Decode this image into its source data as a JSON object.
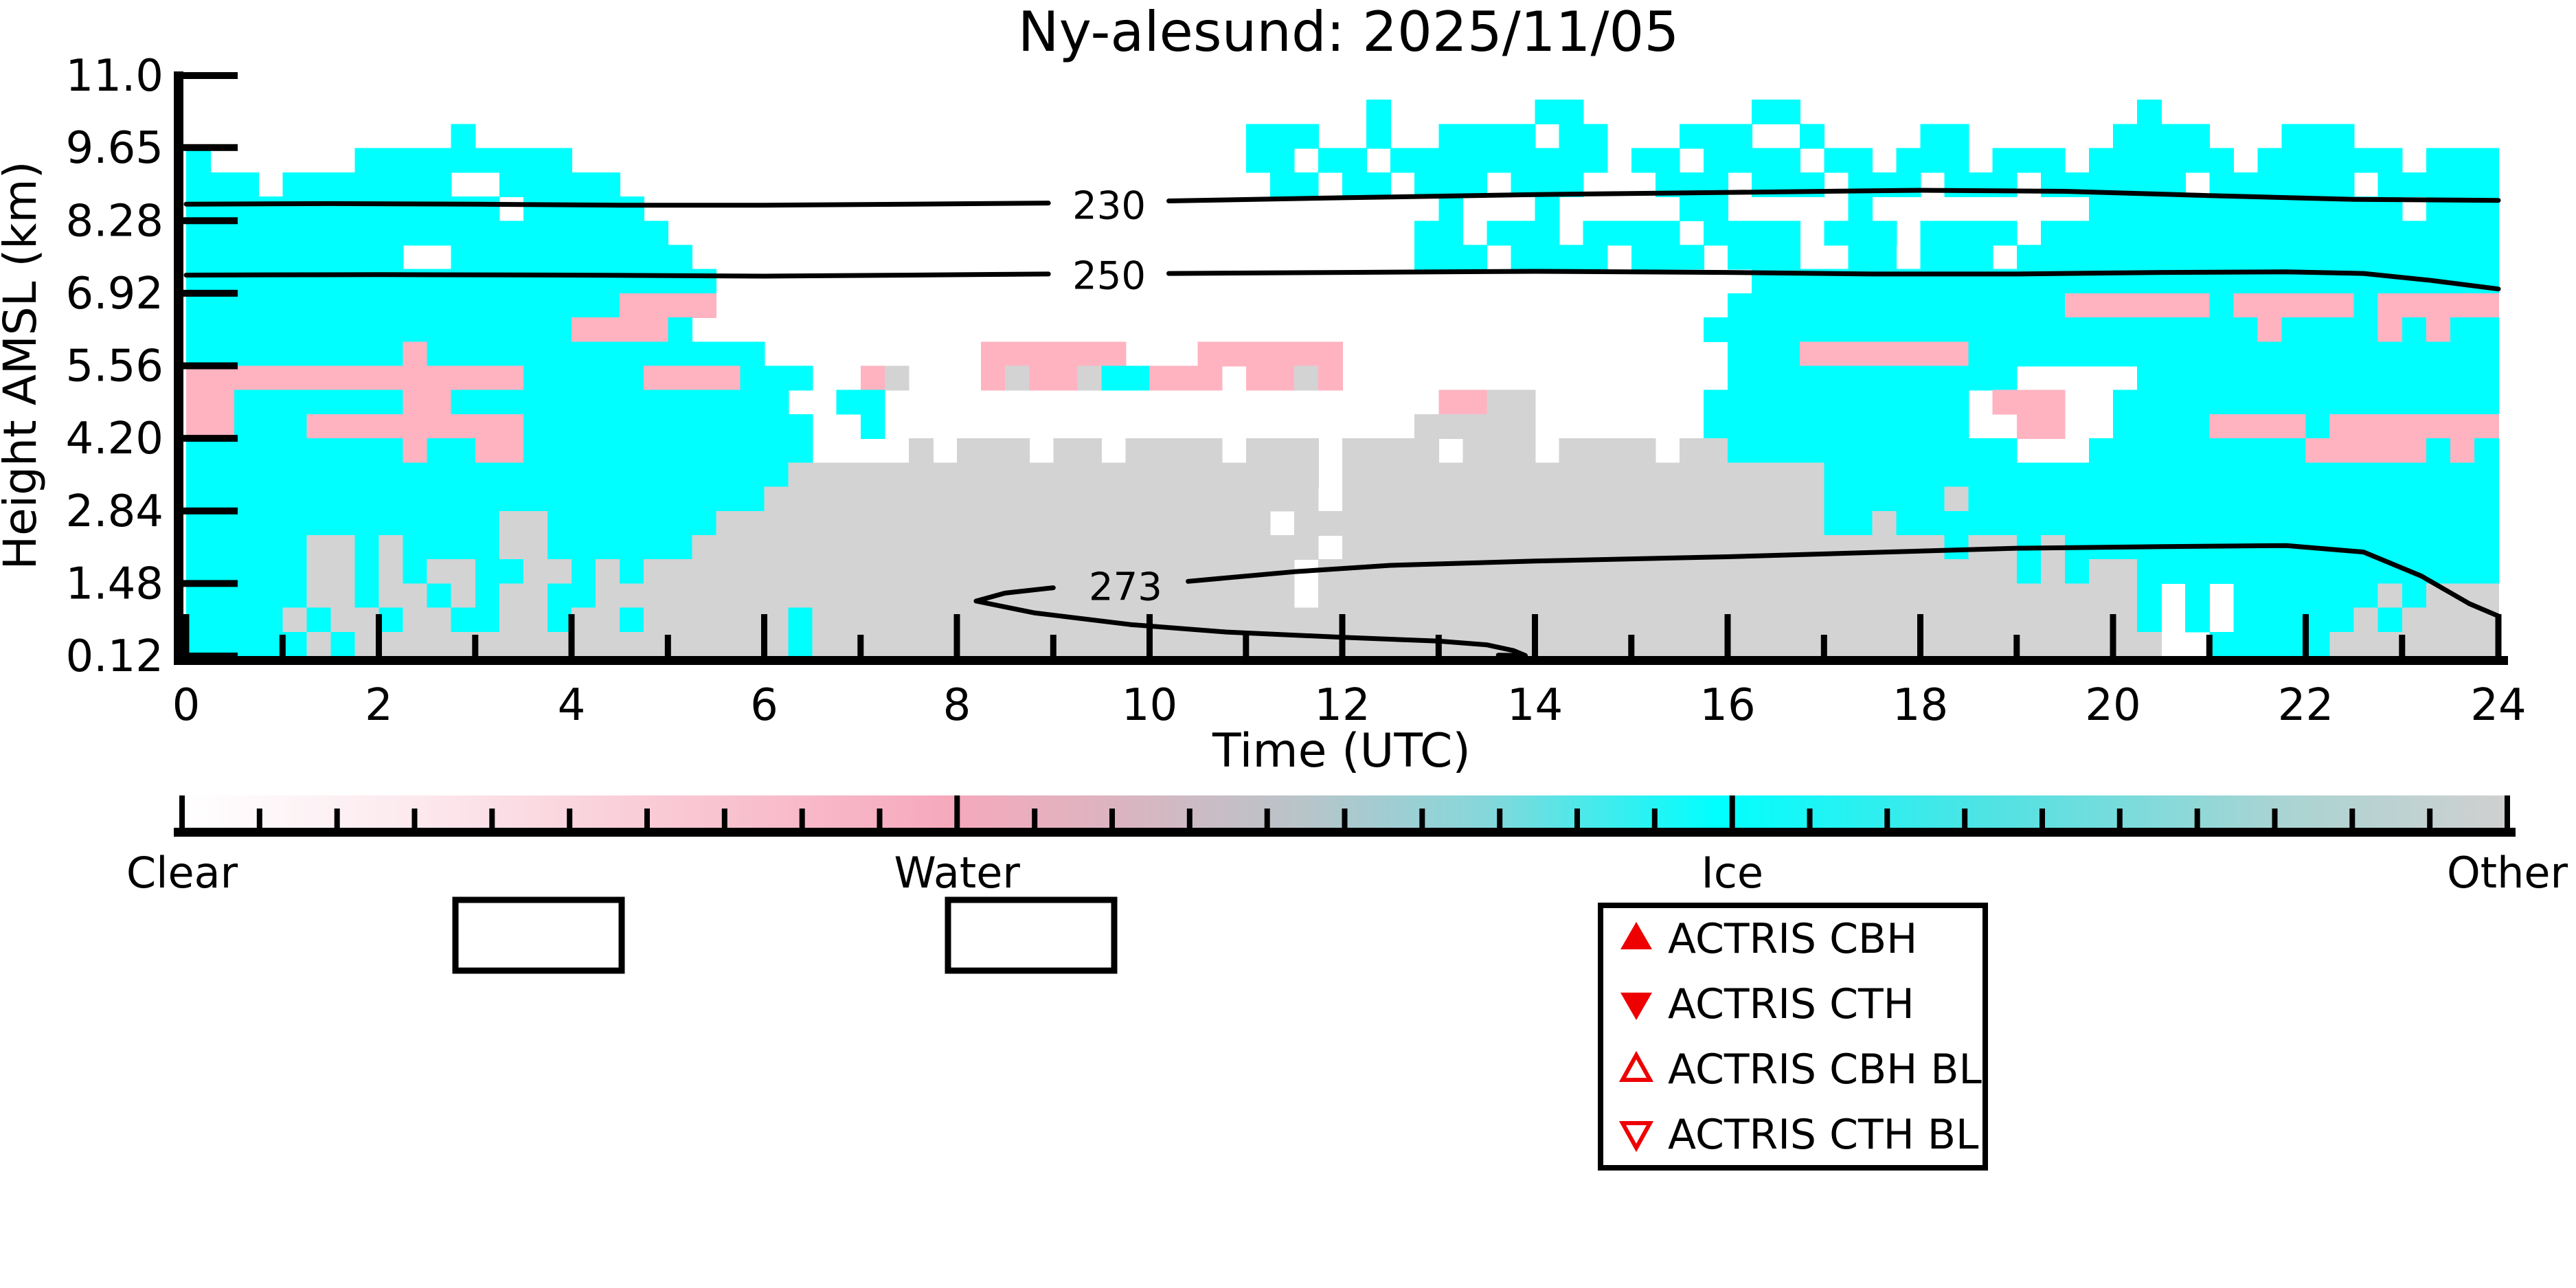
{
  "title": "Ny-alesund: 2025/11/05",
  "axes": {
    "ylabel": "Height AMSL (km)",
    "xlabel": "Time (UTC)",
    "yticks": [
      "11.0",
      "9.65",
      "8.28",
      "6.92",
      "5.56",
      "4.20",
      "2.84",
      "1.48",
      "0.12"
    ],
    "ytick_values": [
      11.0,
      9.65,
      8.28,
      6.92,
      5.56,
      4.2,
      2.84,
      1.48,
      0.12
    ],
    "xticks": [
      "0",
      "2",
      "4",
      "6",
      "8",
      "10",
      "12",
      "14",
      "16",
      "18",
      "20",
      "22",
      "24"
    ],
    "xtick_values": [
      0,
      2,
      4,
      6,
      8,
      10,
      12,
      14,
      16,
      18,
      20,
      22,
      24
    ],
    "x_minor_every_hours": 1,
    "x_range_hours": [
      0,
      24
    ],
    "y_range_km": [
      0.12,
      11.0
    ]
  },
  "colorbar": {
    "labels": [
      {
        "text": "Clear",
        "frac": 0
      },
      {
        "text": "Water",
        "frac": 0.3333
      },
      {
        "text": "Ice",
        "frac": 0.6667
      },
      {
        "text": "Other",
        "frac": 1
      }
    ],
    "minor_tick_divisions": 30,
    "gradient_stops": [
      [
        "0%",
        "#ffffff"
      ],
      [
        "10%",
        "#fce9ee"
      ],
      [
        "22%",
        "#f9c6d2"
      ],
      [
        "33%",
        "#f6a9bc"
      ],
      [
        "40%",
        "#dcb4c0"
      ],
      [
        "48%",
        "#b9c4c9"
      ],
      [
        "56%",
        "#86d7da"
      ],
      [
        "66%",
        "#00ffff"
      ],
      [
        "78%",
        "#52e2e3"
      ],
      [
        "90%",
        "#a8d4d3"
      ],
      [
        "100%",
        "#d0d0d0"
      ]
    ]
  },
  "legend": {
    "marker_color": "#ee0000",
    "items": [
      {
        "marker": "triangle-up-filled",
        "label": "ACTRIS CBH"
      },
      {
        "marker": "triangle-down-filled",
        "label": "ACTRIS CTH"
      },
      {
        "marker": "triangle-up-open",
        "label": "ACTRIS CBH BL"
      },
      {
        "marker": "triangle-down-open",
        "label": "ACTRIS CTH BL"
      }
    ]
  },
  "empty_marker_boxes": 2,
  "chart_data": {
    "type": "heatmap",
    "title": "Ny-alesund: 2025/11/05",
    "xlabel": "Time (UTC)",
    "ylabel": "Height AMSL (km)",
    "xlim_hours": [
      0,
      24
    ],
    "ylim_km": [
      0.12,
      11.0
    ],
    "legend_position": "below-right",
    "grid_lines": "off",
    "classes": {
      "C": {
        "name": "Clear",
        "color": "#ffffff"
      },
      "W": {
        "name": "Water",
        "color": "#ffb3c1"
      },
      "I": {
        "name": "Ice",
        "color": "#00ffff"
      },
      "O": {
        "name": "Other",
        "color": "#d3d3d3"
      }
    },
    "grid": {
      "time_steps": 96,
      "dt_hours": 0.25,
      "rows_top_to_bottom": 24,
      "row_height_km": 0.4533,
      "rows": [
        "CCCCCCCCCCCCCCCCCCCCCCCCCCCCCCCCCCCCCCCCCCCCCCCCCCCCCCCCCCCCCCCCCCCCCCCCCCCCCCCCCCCCCCCCCCCCCC",
        "CCCCCCCCCCCCCCCCCCCCCCCCCCCCCCCCCCCCCCCCCCCCCCCCCICCCCCCIICCCCCCCIICCCCCCCCCCCCCCICCCCCCCCCCCCCC",
        "CCCCCCCCCCCICCCCCCCCCCCCCCCCCCCCCCCCCCCCCCCCIIICCICCIIIICIICCCIIICCICCCCIICCCCCCIIIICCCIIICCCCCC",
        "ICCCCCCIIIIIIIIICCCCCCCCCCCCCCCCCCCCCCCCCCCCIICIICIIIIIIIIICIICIIIICIICIIICIIICIIIIIICIIIIIICIII",
        "IIICIIIIIIICCIIIIICCCCCCCCCCCCCCCCCCCCCCCCCCCIICIICIIICIIICCCIIICIIICIIICIIICIIIIIICIIIIIICIIIII",
        "IIIIIIIIIIIIICIIIIICCCCCCCCCCCCCCCCCCCCCCCCCCCCCCCCCICCCICCCCCIICCCCCICCCCCCCCCIIIIIIIIIIIIICII",
        "IIIIIIIIIIIIIIIIIIIICCCCCCCCCCCCCCCCCCCCCCCCCCCCCCCIICIIICIIIICIIIICIIICIIIICIIIIIIIIIIIIIIIIIII",
        "IIIIIIIIICCIIIIIIIIIICCCCCCCCCCCCCCCCCCCCCCCCCCCCCCIIICIIIICIIICIIICCIICIIICIIIIIIIIIIIIIIIIIIII",
        "IIIIIIIIIIIIIIIIIIIIIICCCCCCCCCCCCCCCCCCCCCCCCCCCCCCCCCCCCCCCCCCCIIIIIIIIIIIIIIIIIIIIIIIIIIIII",
        "IIIIIIIIIIIIIIIIIIWWWWCCCCCCCCCCCCCCCCCCCCCCCCCCCCCCCCCCCCCCCCCCIIIIIIIIIIIIIIWWWWWWIWWWWWIWWW",
        "IIIIIIIIIIIIIIIIWWWWICCCCCCCCCCCCCCCCCCCCCCCCCCCCCCCCCCCCCCCCCCIIIIIIIIIIIIIIIIIIIIIIIWIIIIWIWI",
        "IIIIIIIIIWIIIIIIIIIIIIIICCCCCCCCCWWWWWWCCCWWWWWWCCCCCCCCCCCCCCCCIIIWWWWWWWIIIIIIIIIIIIIIIIIIIIII",
        "WWWWWWWWWWWWWWIIIIIWWWWIIICCWOCCCWOWWOIIWWWCWWOWCCCCCCCCCCCCCCCCIIIIIIIIIIIICCCCCIIIIIIIIIIIIIII",
        "WWIIIIIIIWWIIIIIIIIIIIIIICCIICCCCCCCCCCCCCCCCCCCCCCCWWOOCCCCCCCIIIIIIIIIIICWWWCCIIIIIIIIIIIIIII",
        "WWIIIWWWWWWWWWIIIIIIIIIIIICCICCCCCCCCCCCCCCCCCCCCCCOOOOOCCCCCCCIIIIIIIIIIICCWWCCIIIIWWWWIWWWWWW",
        "IIIIIIIIIWIIWWIIIIIIIIIIIICCCCOCOOOCOOCOOOOCOOOCOOOOCOOOCOOOOCOOIIIIIIIIIIIICCCIIIIIIIIIWWWWWIWI",
        "IIIIIIIIIIIIIIIIIIIIIIIIIOOOOOOOOOOOOOOOOOOOOOOCOOOOOOOOOOOOOOOOOOOOIIIIIIIIIIIIIIIIIIIIIIIIIIII",
        "IIIIIIIIIIIIIIIIIIIIIIIIOOOOOOOOOOOOOOOOOOOOOOOCOOOOOOOOOOOOOOOOOOOOIIIIIOIIIIIIIIIIIIIIIIIIIIII",
        "IIIIIIIIIIIIIOOIIIIIIIOOOOOOOOOOOOOOOOOOOOOOOCOOOOOOOOOOOOOOOOOOOOOOIIOIIIIIIIIIIIIIIIIIIIIIII",
        "IIIIIOOIOIIIIOOIIIIIIOOOOOOOOOOOOOOOOOOOOOOOOOOCOOOOOOOOOOOOOOOOOOOOOOOOOIOOIOIIIIIIIIIIIIIIIIII",
        "IIIIIOOIOIOOIIOOIOIOOOOOOOOOOOOOOOOOOOOOOOOOOOCOOOOOOOOOOOOOOOOOOOOOOOOOOOOOIOIOOIIIIIIIIIIIII",
        "IIIIIOOIOOIOIOOIIOOOOOOOOOOOOOOOOOOOOOOOOOOOOOCOOOOOOOOOOOOOOOOOOOOOOOOOOOOOOOOOOICICIIIIIIOIO",
        "IIIIOIOOIOOIIOOIOOIOOOOOOIOOOOOOOOOOOOOOOOOOOOOOOOOOOOOOOOOOOOOOOOOOOOOOOOOOOOOOOICICIIIIIOIOO",
        "IIIIIOIOOOOOOOOOOOOOOOOOOIOOOOOOOOOOOOOOOOOOOOOOOOOOOOOOOOOOOOOOOOOOOOOOOOOOOOOOOOCCIIIIIOOOOO"
      ]
    },
    "contours": [
      {
        "label": "230",
        "label_pos": {
          "h": 9.58,
          "km": 8.57
        },
        "segments": [
          [
            [
              0,
              8.59
            ],
            [
              1.5,
              8.6
            ],
            [
              3,
              8.59
            ],
            [
              4.5,
              8.57
            ],
            [
              6,
              8.57
            ],
            [
              7.5,
              8.59
            ],
            [
              8.95,
              8.61
            ]
          ],
          [
            [
              10.2,
              8.65
            ],
            [
              12,
              8.71
            ],
            [
              14,
              8.77
            ],
            [
              16,
              8.81
            ],
            [
              18,
              8.85
            ],
            [
              19.5,
              8.83
            ],
            [
              21,
              8.75
            ],
            [
              22.5,
              8.68
            ],
            [
              24,
              8.66
            ]
          ]
        ]
      },
      {
        "label": "250",
        "label_pos": {
          "h": 9.58,
          "km": 7.26
        },
        "segments": [
          [
            [
              0,
              7.26
            ],
            [
              2,
              7.27
            ],
            [
              4,
              7.26
            ],
            [
              6,
              7.24
            ],
            [
              7.5,
              7.26
            ],
            [
              8.95,
              7.28
            ]
          ],
          [
            [
              10.2,
              7.29
            ],
            [
              12,
              7.31
            ],
            [
              14,
              7.33
            ],
            [
              16,
              7.31
            ],
            [
              17.5,
              7.28
            ],
            [
              19,
              7.28
            ],
            [
              20.5,
              7.31
            ],
            [
              21.8,
              7.32
            ],
            [
              22.6,
              7.29
            ],
            [
              23.3,
              7.16
            ],
            [
              24,
              7.0
            ]
          ]
        ]
      },
      {
        "label": "273",
        "label_pos": {
          "h": 9.75,
          "km": 1.43
        },
        "segments": [
          [
            [
              8.2,
              1.15
            ],
            [
              8.5,
              1.3
            ],
            [
              9.0,
              1.4
            ]
          ],
          [
            [
              10.4,
              1.52
            ],
            [
              11.5,
              1.7
            ],
            [
              12.5,
              1.82
            ],
            [
              14,
              1.9
            ],
            [
              16,
              1.98
            ],
            [
              17.5,
              2.06
            ],
            [
              19,
              2.14
            ],
            [
              20.5,
              2.17
            ],
            [
              21.8,
              2.19
            ],
            [
              22.6,
              2.07
            ],
            [
              23.2,
              1.62
            ],
            [
              23.7,
              1.1
            ],
            [
              24,
              0.87
            ]
          ],
          [
            [
              8.2,
              1.15
            ],
            [
              8.8,
              0.93
            ],
            [
              9.8,
              0.71
            ],
            [
              10.8,
              0.57
            ],
            [
              12,
              0.47
            ],
            [
              13,
              0.4
            ],
            [
              13.5,
              0.33
            ],
            [
              13.78,
              0.22
            ],
            [
              13.9,
              0.13
            ],
            [
              13.62,
              0.135
            ]
          ]
        ]
      }
    ]
  }
}
